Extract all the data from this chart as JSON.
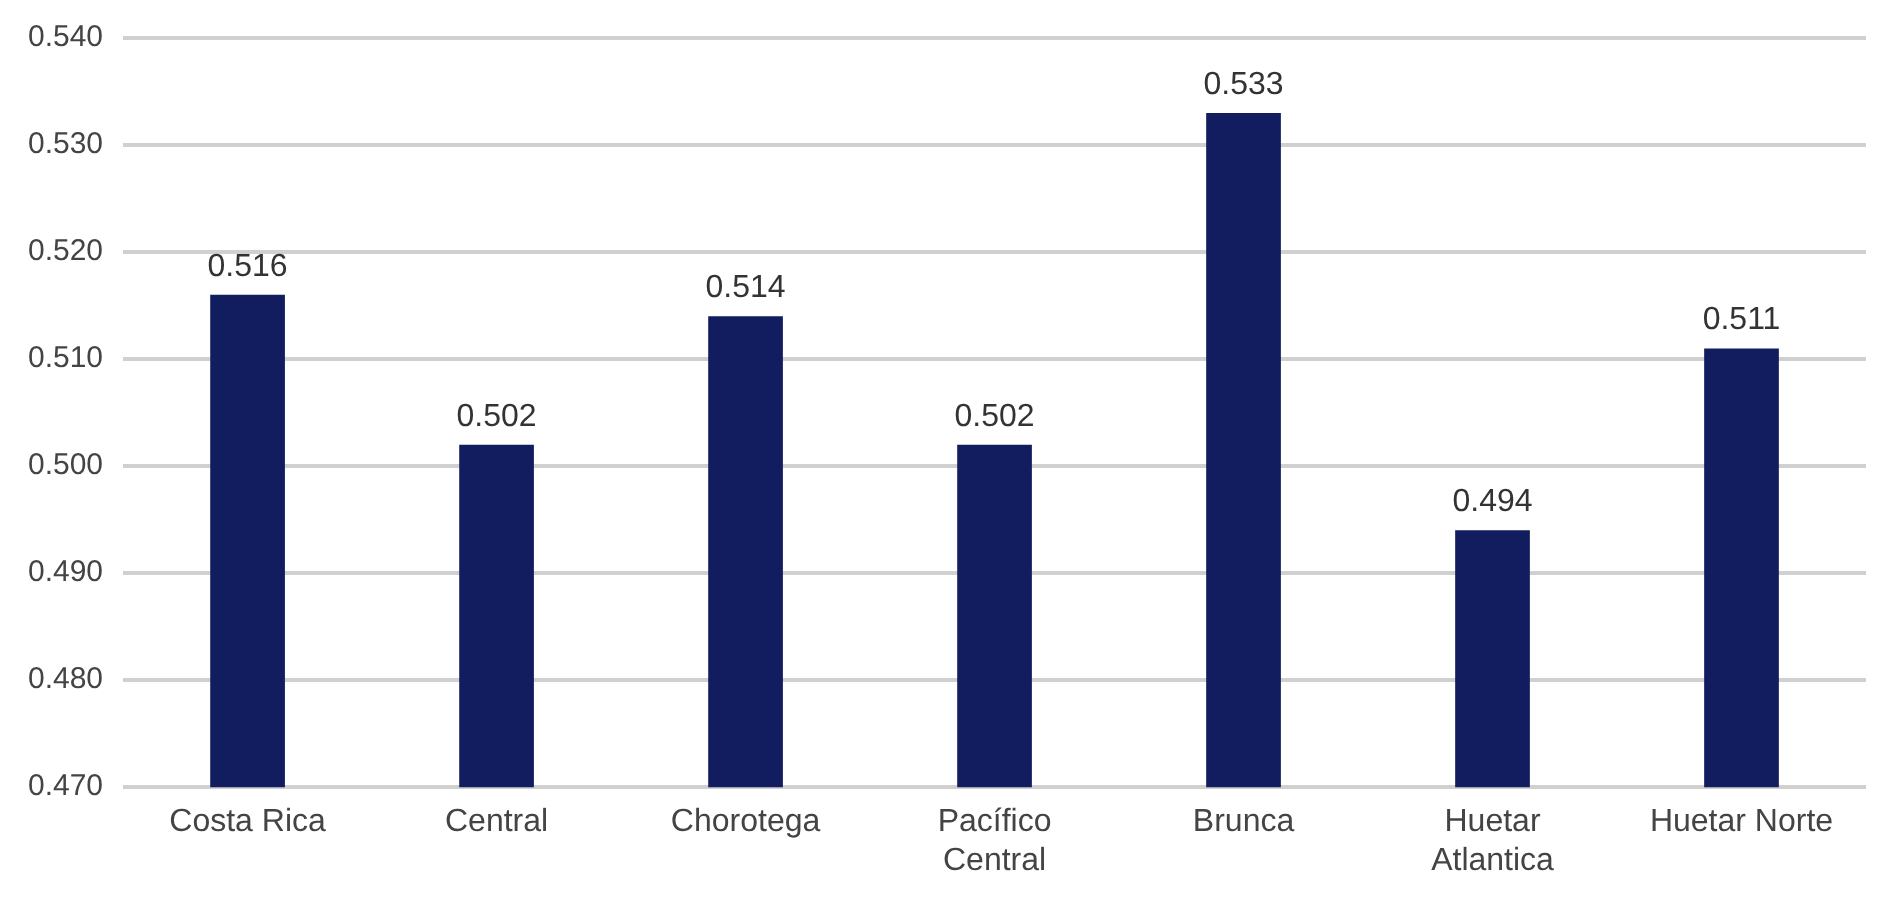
{
  "chart_data": {
    "type": "bar",
    "categories": [
      "Costa Rica",
      "Central",
      "Chorotega",
      "Pacífico Central",
      "Brunca",
      "Huetar Atlantica",
      "Huetar Norte"
    ],
    "values": [
      0.516,
      0.502,
      0.514,
      0.502,
      0.533,
      0.494,
      0.511
    ],
    "color": "#111d5e",
    "ylim": [
      0.47,
      0.54
    ],
    "yticks": [
      {
        "value": 0.47,
        "label": "0.470"
      },
      {
        "value": 0.48,
        "label": "0.480"
      },
      {
        "value": 0.49,
        "label": "0.490"
      },
      {
        "value": 0.5,
        "label": "0.500"
      },
      {
        "value": 0.51,
        "label": "0.510"
      },
      {
        "value": 0.52,
        "label": "0.520"
      },
      {
        "value": 0.53,
        "label": "0.530"
      },
      {
        "value": 0.54,
        "label": "0.540"
      }
    ],
    "grid": "y",
    "data_labels": true
  }
}
